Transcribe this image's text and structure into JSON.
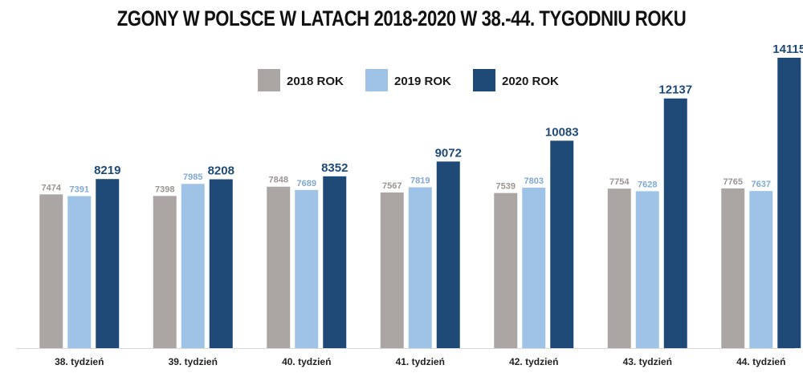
{
  "chart_data": {
    "type": "bar",
    "title": "ZGONY W POLSCE W LATACH 2018-2020 W 38.-44. TYGODNIU ROKU",
    "categories": [
      "38. tydzień",
      "39. tydzień",
      "40. tydzień",
      "41. tydzień",
      "42. tydzień",
      "43. tydzień",
      "44. tydzień"
    ],
    "series": [
      {
        "name": "2018 ROK",
        "color": "#aba5a3",
        "label_color": "#9a9492",
        "values": [
          7474,
          7398,
          7848,
          7567,
          7539,
          7754,
          7765
        ]
      },
      {
        "name": "2019 ROK",
        "color": "#9fc3e7",
        "label_color": "#7fa9d4",
        "values": [
          7391,
          7985,
          7689,
          7819,
          7803,
          7628,
          7637
        ]
      },
      {
        "name": "2020 ROK",
        "color": "#1f4a78",
        "label_color": "#1f4a78",
        "values": [
          8219,
          8208,
          8352,
          9072,
          10083,
          12137,
          14115
        ]
      }
    ],
    "ylim": [
      0,
      14115
    ],
    "legend_position": "top-center",
    "grid": false
  }
}
